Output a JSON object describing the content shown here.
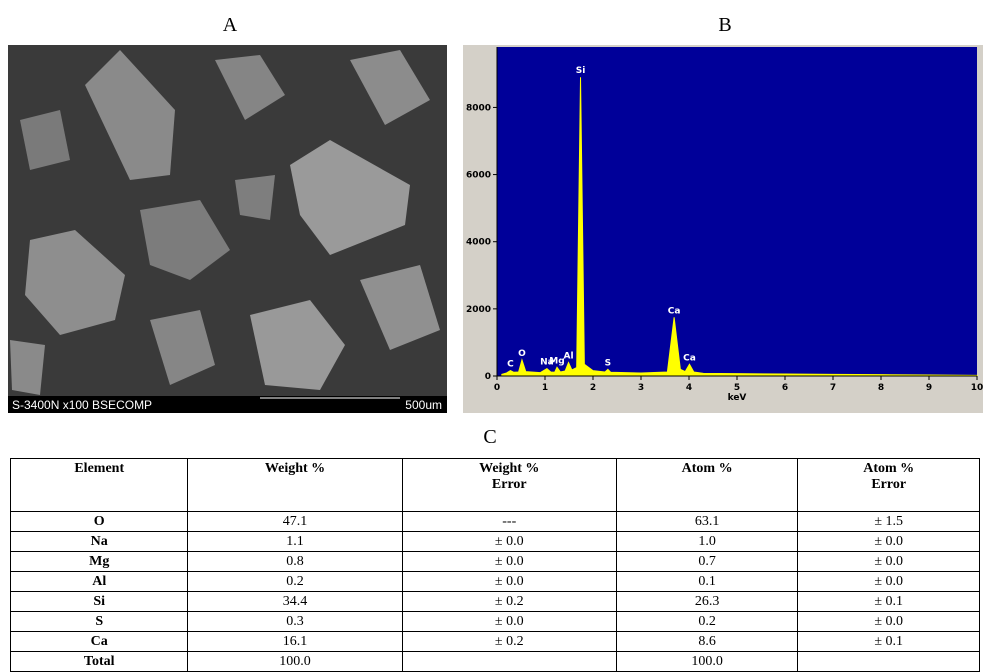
{
  "panels": {
    "a": "A",
    "b": "B",
    "c": "C"
  },
  "image": {
    "caption": "S-3400N x100 BSECOMP",
    "scale": "500um"
  },
  "chart_data": {
    "type": "area",
    "x_label": "keV",
    "x": [
      0.1,
      0.2,
      0.28,
      0.35,
      0.45,
      0.52,
      0.6,
      0.9,
      1.04,
      1.12,
      1.2,
      1.25,
      1.32,
      1.42,
      1.49,
      1.56,
      1.66,
      1.74,
      1.82,
      2.0,
      2.25,
      2.31,
      2.37,
      3.0,
      3.55,
      3.69,
      3.82,
      3.92,
      4.01,
      4.1,
      4.3,
      5,
      6,
      7,
      8,
      9,
      10
    ],
    "values": [
      50,
      90,
      160,
      110,
      120,
      480,
      130,
      100,
      220,
      120,
      110,
      260,
      120,
      150,
      400,
      180,
      250,
      8900,
      350,
      160,
      120,
      200,
      110,
      90,
      120,
      1750,
      200,
      130,
      350,
      120,
      80,
      70,
      60,
      50,
      40,
      30,
      20
    ],
    "color": "#ffff00",
    "background": "#000099",
    "xlim": [
      0,
      10
    ],
    "xticks": [
      0,
      1,
      2,
      3,
      4,
      5,
      6,
      7,
      8,
      9,
      10
    ],
    "ylim": [
      0,
      9800
    ],
    "yticks": [
      0,
      2000,
      4000,
      6000,
      8000
    ],
    "peak_labels": [
      {
        "text": "C",
        "x": 0.28,
        "y": 160
      },
      {
        "text": "O",
        "x": 0.52,
        "y": 480
      },
      {
        "text": "Na",
        "x": 1.04,
        "y": 220
      },
      {
        "text": "Mg",
        "x": 1.25,
        "y": 260
      },
      {
        "text": "Al",
        "x": 1.49,
        "y": 400
      },
      {
        "text": "Si",
        "x": 1.74,
        "y": 8900
      },
      {
        "text": "S",
        "x": 2.31,
        "y": 200
      },
      {
        "text": "Ca",
        "x": 3.69,
        "y": 1750
      },
      {
        "text": "Ca",
        "x": 4.01,
        "y": 350
      }
    ]
  },
  "table": {
    "header": [
      "Element",
      "Weight %",
      "Weight %\nError",
      "Atom %",
      "Atom %\nError"
    ],
    "rows": [
      [
        "O",
        "47.1",
        "---",
        "63.1",
        "± 1.5"
      ],
      [
        "Na",
        "1.1",
        "± 0.0",
        "1.0",
        "± 0.0"
      ],
      [
        "Mg",
        "0.8",
        "± 0.0",
        "0.7",
        "± 0.0"
      ],
      [
        "Al",
        "0.2",
        "± 0.0",
        "0.1",
        "± 0.0"
      ],
      [
        "Si",
        "34.4",
        "± 0.2",
        "26.3",
        "± 0.1"
      ],
      [
        "S",
        "0.3",
        "± 0.0",
        "0.2",
        "± 0.0"
      ],
      [
        "Ca",
        "16.1",
        "± 0.2",
        "8.6",
        "± 0.1"
      ],
      [
        "Total",
        "100.0",
        null,
        "100.0",
        null
      ]
    ]
  }
}
